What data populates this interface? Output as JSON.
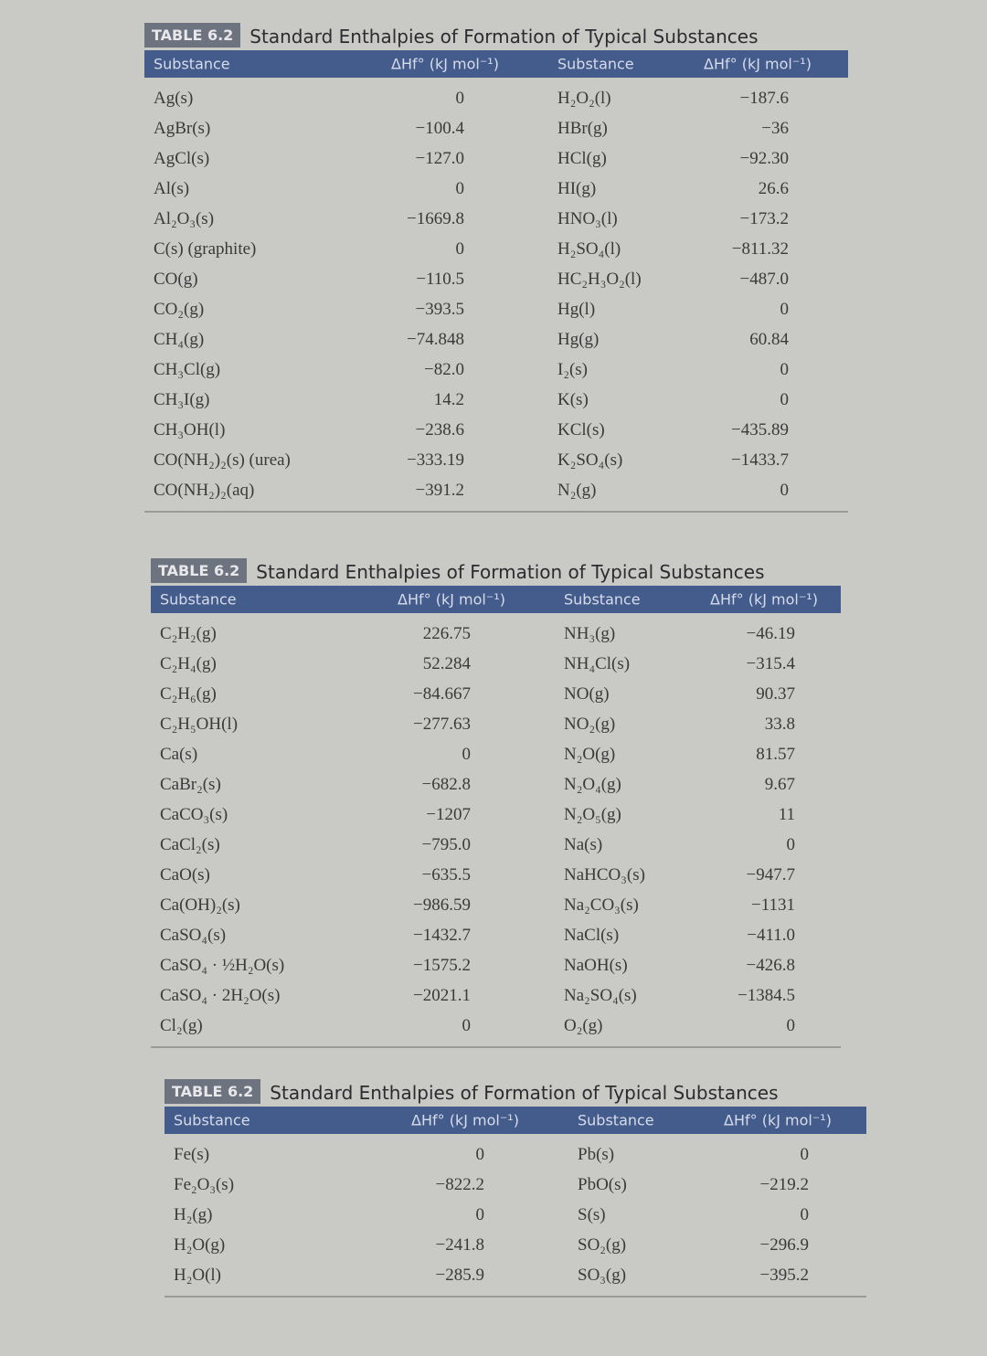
{
  "tables": [
    {
      "tag": "TABLE 6.2",
      "title": "Standard Enthalpies of Formation of Typical Substances",
      "headers": [
        "Substance",
        "ΔHf° (kJ mol⁻¹)",
        "Substance",
        "ΔHf° (kJ mol⁻¹)"
      ],
      "rows": [
        [
          "Ag(s)",
          "0",
          "H₂O₂(l)",
          "−187.6"
        ],
        [
          "AgBr(s)",
          "−100.4",
          "HBr(g)",
          "−36"
        ],
        [
          "AgCl(s)",
          "−127.0",
          "HCl(g)",
          "−92.30"
        ],
        [
          "Al(s)",
          "0",
          "HI(g)",
          "26.6"
        ],
        [
          "Al₂O₃(s)",
          "−1669.8",
          "HNO₃(l)",
          "−173.2"
        ],
        [
          "C(s)   (graphite)",
          "0",
          "H₂SO₄(l)",
          "−811.32"
        ],
        [
          "CO(g)",
          "−110.5",
          "HC₂H₃O₂(l)",
          "−487.0"
        ],
        [
          "CO₂(g)",
          "−393.5",
          "Hg(l)",
          "0"
        ],
        [
          "CH₄(g)",
          "−74.848",
          "Hg(g)",
          "60.84"
        ],
        [
          "CH₃Cl(g)",
          "−82.0",
          "I₂(s)",
          "0"
        ],
        [
          "CH₃I(g)",
          "14.2",
          "K(s)",
          "0"
        ],
        [
          "CH₃OH(l)",
          "−238.6",
          "KCl(s)",
          "−435.89"
        ],
        [
          "CO(NH₂)₂(s)   (urea)",
          "−333.19",
          "K₂SO₄(s)",
          "−1433.7"
        ],
        [
          "CO(NH₂)₂(aq)",
          "−391.2",
          "N₂(g)",
          "0"
        ]
      ]
    },
    {
      "tag": "TABLE 6.2",
      "title": "Standard Enthalpies of Formation of Typical Substances",
      "headers": [
        "Substance",
        "ΔHf° (kJ mol⁻¹)",
        "Substance",
        "ΔHf° (kJ mol⁻¹)"
      ],
      "rows": [
        [
          "C₂H₂(g)",
          "226.75",
          "NH₃(g)",
          "−46.19"
        ],
        [
          "C₂H₄(g)",
          "52.284",
          "NH₄Cl(s)",
          "−315.4"
        ],
        [
          "C₂H₆(g)",
          "−84.667",
          "NO(g)",
          "90.37"
        ],
        [
          "C₂H₅OH(l)",
          "−277.63",
          "NO₂(g)",
          "33.8"
        ],
        [
          "Ca(s)",
          "0",
          "N₂O(g)",
          "81.57"
        ],
        [
          "CaBr₂(s)",
          "−682.8",
          "N₂O₄(g)",
          "9.67"
        ],
        [
          "CaCO₃(s)",
          "−1207",
          "N₂O₅(g)",
          "11"
        ],
        [
          "CaCl₂(s)",
          "−795.0",
          "Na(s)",
          "0"
        ],
        [
          "CaO(s)",
          "−635.5",
          "NaHCO₃(s)",
          "−947.7"
        ],
        [
          "Ca(OH)₂(s)",
          "−986.59",
          "Na₂CO₃(s)",
          "−1131"
        ],
        [
          "CaSO₄(s)",
          "−1432.7",
          "NaCl(s)",
          "−411.0"
        ],
        [
          "CaSO₄ · ½H₂O(s)",
          "−1575.2",
          "NaOH(s)",
          "−426.8"
        ],
        [
          "CaSO₄ · 2H₂O(s)",
          "−2021.1",
          "Na₂SO₄(s)",
          "−1384.5"
        ],
        [
          "Cl₂(g)",
          "0",
          "O₂(g)",
          "0"
        ]
      ]
    },
    {
      "tag": "TABLE 6.2",
      "title": "Standard Enthalpies of Formation of Typical Substances",
      "headers": [
        "Substance",
        "ΔHf° (kJ mol⁻¹)",
        "Substance",
        "ΔHf° (kJ mol⁻¹)"
      ],
      "rows": [
        [
          "Fe(s)",
          "0",
          "Pb(s)",
          "0"
        ],
        [
          "Fe₂O₃(s)",
          "−822.2",
          "PbO(s)",
          "−219.2"
        ],
        [
          "H₂(g)",
          "0",
          "S(s)",
          "0"
        ],
        [
          "H₂O(g)",
          "−241.8",
          "SO₂(g)",
          "−296.9"
        ],
        [
          "H₂O(l)",
          "−285.9",
          "SO₃(g)",
          "−395.2"
        ]
      ]
    }
  ],
  "colors": {
    "header_bar": "#435c8c",
    "tag": "#6d7480",
    "background": "#c9c9c6"
  }
}
